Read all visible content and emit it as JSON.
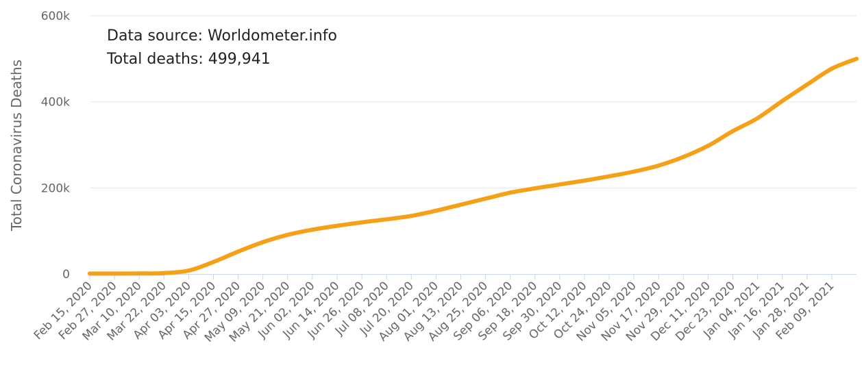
{
  "chart_data": {
    "type": "line",
    "title": "",
    "xlabel": "",
    "ylabel": "Total Coronavirus Deaths",
    "annotations": [
      "Data source: Worldometer.info",
      "Total deaths: 499,941"
    ],
    "ylim": [
      0,
      600000
    ],
    "y_ticks": [
      {
        "value": 0,
        "label": "0"
      },
      {
        "value": 200000,
        "label": "200k"
      },
      {
        "value": 400000,
        "label": "400k"
      },
      {
        "value": 600000,
        "label": "600k"
      }
    ],
    "x_ticks": [
      "Feb 15, 2020",
      "Feb 27, 2020",
      "Mar 10, 2020",
      "Mar 22, 2020",
      "Apr 03, 2020",
      "Apr 15, 2020",
      "Apr 27, 2020",
      "May 09, 2020",
      "May 21, 2020",
      "Jun 02, 2020",
      "Jun 14, 2020",
      "Jun 26, 2020",
      "Jul 08, 2020",
      "Jul 20, 2020",
      "Aug 01, 2020",
      "Aug 13, 2020",
      "Aug 25, 2020",
      "Sep 06, 2020",
      "Sep 18, 2020",
      "Sep 30, 2020",
      "Oct 12, 2020",
      "Oct 24, 2020",
      "Nov 05, 2020",
      "Nov 17, 2020",
      "Nov 29, 2020",
      "Dec 11, 2020",
      "Dec 23, 2020",
      "Jan 04, 2021",
      "Jan 16, 2021",
      "Jan 28, 2021",
      "Feb 09, 2021"
    ],
    "grid": true,
    "legend": "none",
    "series": [
      {
        "color": "#f5a016",
        "x": [
          "2020-02-15",
          "2020-03-10",
          "2020-03-22",
          "2020-04-03",
          "2020-04-15",
          "2020-04-27",
          "2020-05-09",
          "2020-05-21",
          "2020-06-02",
          "2020-06-14",
          "2020-06-26",
          "2020-07-08",
          "2020-07-20",
          "2020-08-01",
          "2020-08-13",
          "2020-08-25",
          "2020-09-06",
          "2020-09-18",
          "2020-09-30",
          "2020-10-12",
          "2020-10-24",
          "2020-11-05",
          "2020-11-17",
          "2020-11-29",
          "2020-12-11",
          "2020-12-23",
          "2021-01-04",
          "2021-01-16",
          "2021-01-28",
          "2021-02-09",
          "2021-02-21"
        ],
        "y": [
          1000,
          1200,
          2000,
          8000,
          28000,
          52000,
          74000,
          91000,
          103000,
          112000,
          120000,
          127000,
          135000,
          147000,
          161000,
          175000,
          189000,
          199000,
          208000,
          217000,
          227000,
          238000,
          252000,
          272000,
          298000,
          332000,
          362000,
          402000,
          440000,
          477000,
          499941
        ]
      }
    ]
  }
}
